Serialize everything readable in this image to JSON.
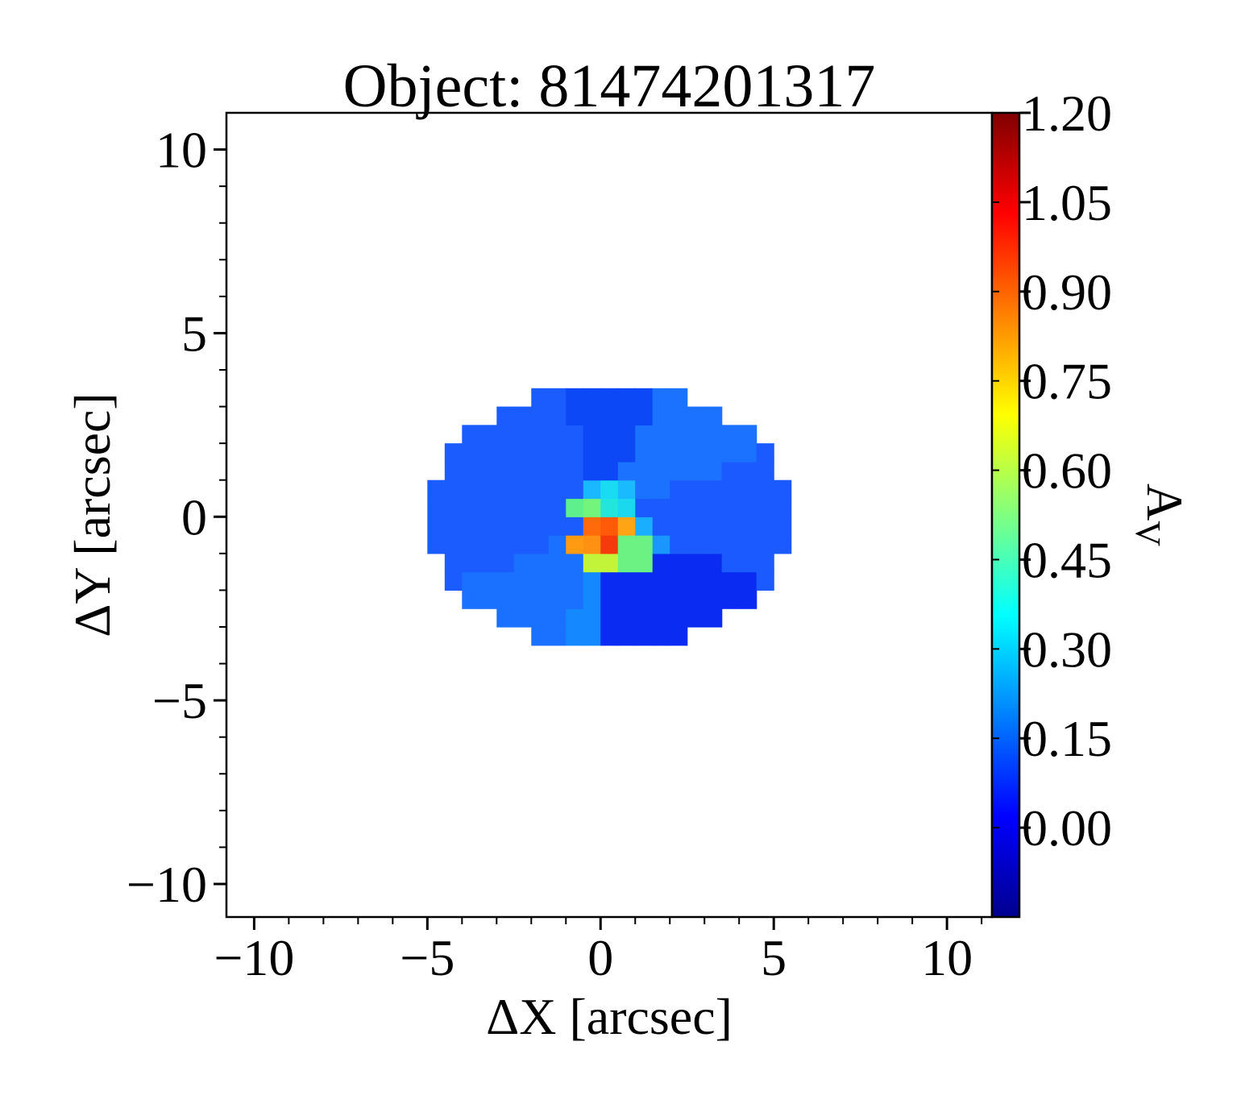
{
  "chart_data": {
    "type": "heatmap",
    "title": "Object: 81474201317",
    "xlabel": "ΔX [arcsec]",
    "ylabel": "ΔY [arcsec]",
    "xlim": [
      -10.8,
      11.3
    ],
    "ylim": [
      -10.9,
      11.0
    ],
    "xticks": [
      -10,
      -5,
      0,
      5,
      10
    ],
    "xtick_labels": [
      "−10",
      "−5",
      "0",
      "5",
      "10"
    ],
    "yticks": [
      -10,
      -5,
      0,
      5,
      10
    ],
    "ytick_labels": [
      "−10",
      "−5",
      "0",
      "5",
      "10"
    ],
    "grid": false,
    "colorbar": {
      "label": "A",
      "label_subscript": "V",
      "colormap": "jet",
      "range": [
        -0.15,
        1.2
      ],
      "ticks": [
        0.0,
        0.15,
        0.3,
        0.45,
        0.6,
        0.75,
        0.9,
        1.05,
        1.2
      ],
      "tick_labels": [
        "0.00",
        "0.15",
        "0.30",
        "0.45",
        "0.60",
        "0.75",
        "0.90",
        "1.05",
        "1.20"
      ]
    },
    "map": {
      "pixel_size_arcsec": 0.5,
      "footprint": {
        "center": [
          0.25,
          0.0
        ],
        "semi_axes": [
          5.3,
          3.6
        ]
      },
      "sectors": [
        {
          "name": "upper-left",
          "angle_range": [
            135,
            157
          ],
          "value": 0.13,
          "color": "#1a5cff"
        },
        {
          "name": "upper",
          "angle_range": [
            70,
            112
          ],
          "value": 0.1,
          "color": "#0c48f5"
        },
        {
          "name": "upper-right",
          "angle_range": [
            22,
            70
          ],
          "value": 0.2,
          "color": "#1a72ff"
        },
        {
          "name": "right",
          "angle_range": [
            -22,
            22
          ],
          "value": 0.12,
          "color": "#1a5aff"
        },
        {
          "name": "lower-right",
          "angle_range": [
            -90,
            -22
          ],
          "value": 0.04,
          "color": "#0a2cf2"
        },
        {
          "name": "lower",
          "angle_range": [
            -112,
            -90
          ],
          "value": 0.23,
          "color": "#1388ff"
        },
        {
          "name": "lower-left",
          "angle_range": [
            -157,
            -112
          ],
          "value": 0.2,
          "color": "#1a70ff"
        },
        {
          "name": "left",
          "angle_range": [
            157,
            225
          ],
          "value": 0.13,
          "color": "#1a5cff"
        }
      ],
      "core_pixels": [
        {
          "x": -0.25,
          "y": 0.75,
          "value": 0.33,
          "color": "#19b8ff"
        },
        {
          "x": 0.25,
          "y": 0.75,
          "value": 0.38,
          "color": "#19dcf2"
        },
        {
          "x": 0.75,
          "y": 0.75,
          "value": 0.33,
          "color": "#1abaff"
        },
        {
          "x": -0.75,
          "y": 0.25,
          "value": 0.52,
          "color": "#5ef08c"
        },
        {
          "x": -0.25,
          "y": 0.25,
          "value": 0.55,
          "color": "#72f57a"
        },
        {
          "x": 0.25,
          "y": 0.25,
          "value": 0.4,
          "color": "#22e6dc"
        },
        {
          "x": 0.75,
          "y": 0.25,
          "value": 0.38,
          "color": "#1ad8ee"
        },
        {
          "x": -0.25,
          "y": -0.25,
          "value": 0.98,
          "color": "#ff6a0a"
        },
        {
          "x": 0.25,
          "y": -0.25,
          "value": 1.0,
          "color": "#ff5a08"
        },
        {
          "x": 0.75,
          "y": -0.25,
          "value": 0.88,
          "color": "#ffa515"
        },
        {
          "x": 1.25,
          "y": -0.25,
          "value": 0.32,
          "color": "#1aaeff"
        },
        {
          "x": -0.75,
          "y": -0.75,
          "value": 0.9,
          "color": "#ff9a12"
        },
        {
          "x": -0.25,
          "y": -0.75,
          "value": 0.92,
          "color": "#ff9112"
        },
        {
          "x": 0.25,
          "y": -0.75,
          "value": 1.06,
          "color": "#f53a0c"
        },
        {
          "x": 0.75,
          "y": -0.75,
          "value": 0.55,
          "color": "#6cf282"
        },
        {
          "x": 1.25,
          "y": -0.75,
          "value": 0.55,
          "color": "#6cf282"
        },
        {
          "x": 1.75,
          "y": -0.75,
          "value": 0.26,
          "color": "#1a96ff"
        },
        {
          "x": -0.25,
          "y": -1.25,
          "value": 0.68,
          "color": "#c2f53a"
        },
        {
          "x": 0.25,
          "y": -1.25,
          "value": 0.68,
          "color": "#c2f53a"
        },
        {
          "x": 0.75,
          "y": -1.25,
          "value": 0.55,
          "color": "#6cf282"
        },
        {
          "x": 1.25,
          "y": -1.25,
          "value": 0.55,
          "color": "#6cf282"
        }
      ]
    }
  }
}
